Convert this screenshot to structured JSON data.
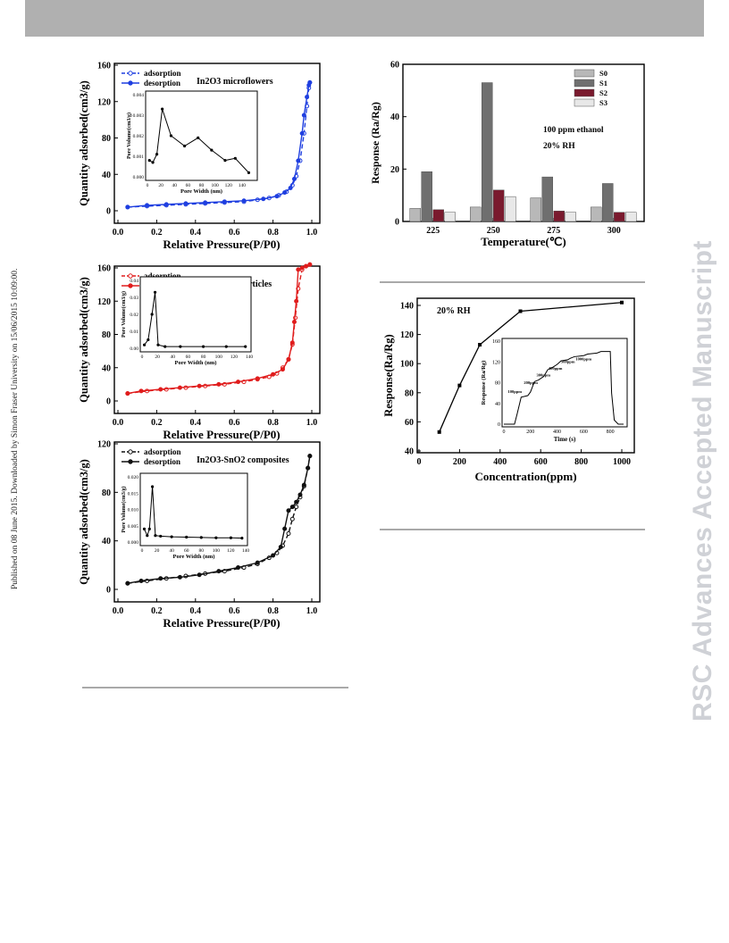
{
  "page": {
    "side_note": "Published on 08 June 2015. Downloaded by Simon Fraser University on 15/06/2015 10:09:00.",
    "watermark": "RSC Advances Accepted Manuscript"
  },
  "chart_data": [
    {
      "type": "line",
      "title": "In2O3 microflowers",
      "xlabel": "Relative Pressure(P/P0)",
      "ylabel": "Quantity adsorbed(cm3/g)",
      "xlim": [
        0,
        1.0
      ],
      "ylim": [
        0,
        160
      ],
      "xticks": [
        "0.0",
        "0.2",
        "0.4",
        "0.6",
        "0.8",
        "1.0"
      ],
      "yticks": [
        "0",
        "40",
        "80",
        "120",
        "160"
      ],
      "color": "#1f3fe0",
      "legend": [
        "adsorption",
        "desorption"
      ],
      "series": [
        {
          "name": "adsorption",
          "x": [
            0.05,
            0.15,
            0.25,
            0.35,
            0.45,
            0.55,
            0.65,
            0.72,
            0.78,
            0.83,
            0.87,
            0.9,
            0.92,
            0.94,
            0.96,
            0.975,
            0.985,
            0.99
          ],
          "y": [
            4,
            5,
            6,
            7,
            8,
            9,
            10,
            12,
            14,
            17,
            21,
            28,
            38,
            55,
            85,
            115,
            135,
            141
          ]
        },
        {
          "name": "desorption",
          "x": [
            0.99,
            0.985,
            0.975,
            0.96,
            0.95,
            0.93,
            0.91,
            0.89,
            0.86,
            0.82,
            0.75,
            0.65,
            0.55,
            0.45,
            0.35,
            0.25,
            0.15,
            0.05
          ],
          "y": [
            141,
            138,
            125,
            105,
            85,
            55,
            35,
            25,
            20,
            16,
            13,
            11,
            10,
            9,
            8,
            7,
            6,
            4
          ]
        }
      ],
      "inset": {
        "xlabel": "Pore Width (nm)",
        "ylabel": "Pore Volume(cm3/g)",
        "xlim": [
          0,
          160
        ],
        "ylim": [
          0,
          0.004
        ],
        "xticks": [
          "0",
          "20",
          "40",
          "60",
          "80",
          "100",
          "120",
          "140"
        ],
        "yticks": [
          "0.000",
          "0.001",
          "0.002",
          "0.003",
          "0.004"
        ],
        "x": [
          3,
          8,
          14,
          22,
          35,
          55,
          75,
          95,
          115,
          130,
          150
        ],
        "y": [
          0.0008,
          0.0007,
          0.0011,
          0.0033,
          0.002,
          0.0015,
          0.0019,
          0.0013,
          0.0008,
          0.0009,
          0.0002
        ]
      }
    },
    {
      "type": "line",
      "title": "SnO2 nanoparticles",
      "xlabel": "Relative Pressure(P/P0)",
      "ylabel": "Quantity adsorbed(cm3/g)",
      "xlim": [
        0,
        1.0
      ],
      "ylim": [
        0,
        160
      ],
      "xticks": [
        "0.0",
        "0.2",
        "0.4",
        "0.6",
        "0.8",
        "1.0"
      ],
      "yticks": [
        "0",
        "40",
        "80",
        "120",
        "160"
      ],
      "color": "#e01d1d",
      "legend": [
        "adsorption",
        "desorption"
      ],
      "series": [
        {
          "name": "adsorption",
          "x": [
            0.05,
            0.15,
            0.25,
            0.35,
            0.45,
            0.55,
            0.65,
            0.72,
            0.78,
            0.82,
            0.85,
            0.88,
            0.9,
            0.915,
            0.93,
            0.95,
            0.97,
            0.99
          ],
          "y": [
            9,
            12,
            14,
            16,
            18,
            20,
            23,
            26,
            29,
            33,
            40,
            50,
            68,
            100,
            135,
            158,
            162,
            164
          ]
        },
        {
          "name": "desorption",
          "x": [
            0.99,
            0.97,
            0.95,
            0.93,
            0.92,
            0.91,
            0.9,
            0.88,
            0.85,
            0.8,
            0.72,
            0.62,
            0.52,
            0.42,
            0.32,
            0.22,
            0.12,
            0.05
          ],
          "y": [
            164,
            162,
            160,
            158,
            120,
            95,
            70,
            50,
            38,
            32,
            27,
            23,
            20,
            18,
            16,
            14,
            12,
            9
          ]
        }
      ],
      "inset": {
        "xlabel": "Pore Width (nm)",
        "ylabel": "Pore Volume(cm3/g)",
        "xlim": [
          0,
          140
        ],
        "ylim": [
          0,
          0.04
        ],
        "xticks": [
          "0",
          "20",
          "40",
          "60",
          "80",
          "100",
          "120",
          "140"
        ],
        "yticks": [
          "0.00",
          "0.01",
          "0.02",
          "0.03",
          "0.04"
        ],
        "x": [
          3,
          8,
          13,
          17,
          21,
          30,
          50,
          80,
          110,
          135
        ],
        "y": [
          0.002,
          0.005,
          0.02,
          0.033,
          0.002,
          0.001,
          0.001,
          0.001,
          0.001,
          0.001
        ]
      }
    },
    {
      "type": "line",
      "title": "In2O3-SnO2 composites",
      "xlabel": "Relative Pressure(P/P0)",
      "ylabel": "Quantity adsorbed(cm3/g)",
      "xlim": [
        0,
        1.0
      ],
      "ylim": [
        0,
        120
      ],
      "xticks": [
        "0.0",
        "0.2",
        "0.4",
        "0.6",
        "0.8",
        "1.0"
      ],
      "yticks": [
        "0",
        "40",
        "80",
        "120"
      ],
      "color": "#111111",
      "legend": [
        "adsorption",
        "desorption"
      ],
      "series": [
        {
          "name": "adsorption",
          "x": [
            0.05,
            0.15,
            0.25,
            0.35,
            0.45,
            0.55,
            0.65,
            0.72,
            0.78,
            0.82,
            0.85,
            0.88,
            0.9,
            0.92,
            0.94,
            0.96,
            0.98,
            0.99
          ],
          "y": [
            5,
            7,
            9,
            11,
            13,
            15,
            18,
            21,
            26,
            30,
            36,
            46,
            58,
            68,
            76,
            85,
            100,
            110
          ]
        },
        {
          "name": "desorption",
          "x": [
            0.99,
            0.98,
            0.96,
            0.94,
            0.92,
            0.9,
            0.88,
            0.86,
            0.84,
            0.8,
            0.72,
            0.62,
            0.52,
            0.42,
            0.32,
            0.22,
            0.12,
            0.05
          ],
          "y": [
            110,
            100,
            86,
            78,
            72,
            68,
            65,
            50,
            35,
            28,
            22,
            18,
            15,
            12,
            10,
            9,
            7,
            5
          ]
        }
      ],
      "inset": {
        "xlabel": "Pore Width (nm)",
        "ylabel": "Pore Volume(cm3/g)",
        "xlim": [
          0,
          140
        ],
        "ylim": [
          0,
          0.02
        ],
        "xticks": [
          "0",
          "20",
          "40",
          "60",
          "80",
          "100",
          "120",
          "140"
        ],
        "yticks": [
          "0.000",
          "0.005",
          "0.010",
          "0.015",
          "0.020"
        ],
        "x": [
          3,
          7,
          10,
          14,
          18,
          25,
          40,
          60,
          80,
          100,
          120,
          135
        ],
        "y": [
          0.004,
          0.002,
          0.004,
          0.017,
          0.002,
          0.0018,
          0.0016,
          0.0015,
          0.0014,
          0.0013,
          0.0013,
          0.0012
        ]
      }
    },
    {
      "type": "bar",
      "xlabel": "Temperature(℃)",
      "ylabel": "Response (Ra/Rg)",
      "categories": [
        "225",
        "250",
        "275",
        "300"
      ],
      "ylim": [
        0,
        60
      ],
      "yticks": [
        "0",
        "20",
        "40",
        "60"
      ],
      "annotations": [
        "100 ppm ethanol",
        "20% RH"
      ],
      "series": [
        {
          "name": "S0",
          "color": "#b8b8b8",
          "values": [
            5,
            5.5,
            9,
            5.5
          ]
        },
        {
          "name": "S1",
          "color": "#6f6f6f",
          "values": [
            19,
            53,
            17,
            14.5
          ]
        },
        {
          "name": "S2",
          "color": "#7a1a2e",
          "values": [
            4.5,
            12,
            4,
            3.5
          ]
        },
        {
          "name": "S3",
          "color": "#e8e8e8",
          "values": [
            3.5,
            9.5,
            3.5,
            3.5
          ]
        }
      ]
    },
    {
      "type": "line",
      "xlabel": "Concentration(ppm)",
      "ylabel": "Response(Ra/Rg)",
      "xlim": [
        0,
        1000
      ],
      "ylim": [
        40,
        140
      ],
      "xticks": [
        "0",
        "200",
        "400",
        "600",
        "800",
        "1000"
      ],
      "yticks": [
        "40",
        "60",
        "80",
        "100",
        "120",
        "140"
      ],
      "annotations": [
        "20% RH"
      ],
      "x": [
        100,
        200,
        300,
        500,
        1000
      ],
      "y": [
        53,
        85,
        113,
        136,
        142
      ],
      "inset": {
        "xlabel": "Time (s)",
        "ylabel": "Response (Ra/Rg)",
        "xlim": [
          0,
          900
        ],
        "ylim": [
          0,
          160
        ],
        "xticks": [
          "0",
          "200",
          "400",
          "600",
          "800"
        ],
        "yticks": [
          "0",
          "40",
          "80",
          "120",
          "160"
        ],
        "step_labels": [
          "100ppm",
          "200ppm",
          "300ppm",
          "400ppm",
          "500ppm",
          "1000ppm"
        ],
        "x": [
          0,
          80,
          100,
          130,
          180,
          200,
          230,
          260,
          300,
          330,
          370,
          400,
          430,
          480,
          500,
          530,
          600,
          630,
          700,
          730,
          800,
          810,
          830,
          860,
          900
        ],
        "y": [
          0,
          0,
          20,
          52,
          55,
          62,
          82,
          85,
          92,
          105,
          110,
          115,
          122,
          124,
          127,
          130,
          132,
          135,
          137,
          140,
          140,
          60,
          8,
          0,
          0
        ]
      }
    }
  ]
}
